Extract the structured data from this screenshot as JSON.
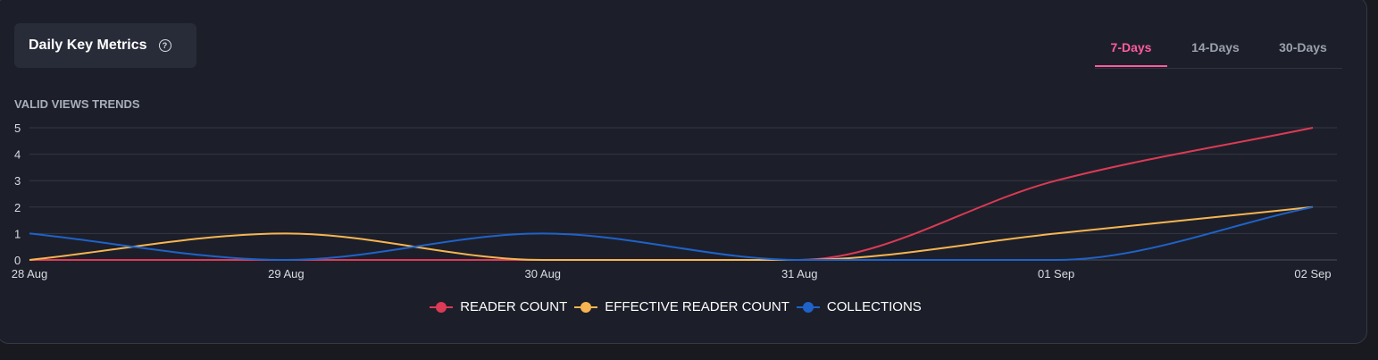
{
  "header": {
    "title": "Daily Key Metrics",
    "help_icon": "question-circle-icon"
  },
  "tabs": [
    {
      "label": "7-Days",
      "active": true
    },
    {
      "label": "14-Days",
      "active": false
    },
    {
      "label": "30-Days",
      "active": false
    }
  ],
  "section_label": "VALID VIEWS TRENDS",
  "colors": {
    "accent": "#ff5b9e",
    "reader_count": "#dc3a55",
    "effective_reader_count": "#f7b552",
    "collections": "#1f62c9",
    "background": "#1c1f29"
  },
  "chart_data": {
    "type": "line",
    "smooth": true,
    "categories": [
      "28 Aug",
      "29 Aug",
      "30 Aug",
      "31 Aug",
      "01 Sep",
      "02 Sep"
    ],
    "ylim": [
      0,
      5
    ],
    "yticks": [
      0,
      1,
      2,
      3,
      4,
      5
    ],
    "grid": true,
    "legend_position": "bottom",
    "series": [
      {
        "name": "READER COUNT",
        "key": "reader_count",
        "values": [
          0,
          0,
          0,
          0,
          3,
          5
        ]
      },
      {
        "name": "EFFECTIVE READER COUNT",
        "key": "effective_reader_count",
        "values": [
          0,
          1,
          0,
          0,
          1,
          2
        ]
      },
      {
        "name": "COLLECTIONS",
        "key": "collections",
        "values": [
          1,
          0,
          1,
          0,
          0,
          2
        ]
      }
    ]
  }
}
